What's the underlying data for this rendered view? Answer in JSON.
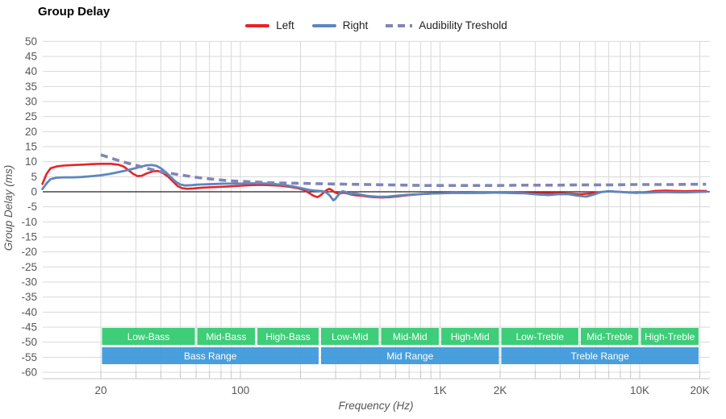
{
  "title": "Group Delay",
  "legend": {
    "items": [
      {
        "label": "Left",
        "color": "#e8232a",
        "style": "solid"
      },
      {
        "label": "Right",
        "color": "#5d87bd",
        "style": "solid"
      },
      {
        "label": "Audibility Treshold",
        "color": "#8185b4",
        "style": "dashed"
      }
    ]
  },
  "chart_data": {
    "type": "line",
    "title": "Group Delay",
    "xlabel": "Frequency (Hz)",
    "ylabel": "Group Delay (ms)",
    "x_axis": {
      "scale": "log",
      "min_hz": 10.2,
      "max_hz": 22400,
      "ticks": [
        {
          "label": "20",
          "value": 20
        },
        {
          "label": "100",
          "value": 100
        },
        {
          "label": "1K",
          "value": 1000
        },
        {
          "label": "2K",
          "value": 2000
        },
        {
          "label": "10K",
          "value": 10000
        },
        {
          "label": "20K",
          "value": 20000
        }
      ]
    },
    "y_axis": {
      "min": -62,
      "max": 50,
      "tick_step": 5,
      "grid": true,
      "tick_labels": [
        "50",
        "45",
        "40",
        "35",
        "30",
        "25",
        "20",
        "15",
        "10",
        "5",
        "0",
        "-5",
        "-10",
        "-15",
        "-20",
        "-25",
        "-30",
        "-35",
        "-40",
        "-45",
        "-50",
        "-55",
        "-60"
      ]
    },
    "series": [
      {
        "name": "Left",
        "color": "#e8232a",
        "width": 2.6,
        "dash": null,
        "points": [
          [
            10.2,
            2.6
          ],
          [
            10.7,
            6.0
          ],
          [
            11.2,
            7.8
          ],
          [
            12,
            8.4
          ],
          [
            13,
            8.7
          ],
          [
            14.5,
            8.9
          ],
          [
            16,
            9.0
          ],
          [
            18,
            9.2
          ],
          [
            20,
            9.3
          ],
          [
            22.5,
            9.3
          ],
          [
            24.5,
            9.0
          ],
          [
            26,
            8.4
          ],
          [
            27.5,
            7.2
          ],
          [
            29,
            6.0
          ],
          [
            30.5,
            5.2
          ],
          [
            32,
            5.3
          ],
          [
            34,
            6.1
          ],
          [
            36.5,
            6.8
          ],
          [
            38.5,
            6.9
          ],
          [
            41,
            6.2
          ],
          [
            43.5,
            5.0
          ],
          [
            46,
            3.4
          ],
          [
            48.5,
            1.9
          ],
          [
            51,
            1.2
          ],
          [
            54,
            1.0
          ],
          [
            58,
            1.1
          ],
          [
            63,
            1.3
          ],
          [
            70,
            1.5
          ],
          [
            78,
            1.6
          ],
          [
            88,
            1.8
          ],
          [
            100,
            2.0
          ],
          [
            112,
            2.2
          ],
          [
            126,
            2.3
          ],
          [
            141,
            2.2
          ],
          [
            158,
            2.0
          ],
          [
            178,
            1.6
          ],
          [
            196,
            1.1
          ],
          [
            210,
            0.5
          ],
          [
            222,
            -0.5
          ],
          [
            232,
            -1.3
          ],
          [
            243,
            -1.8
          ],
          [
            252,
            -1.2
          ],
          [
            262,
            -0.2
          ],
          [
            271,
            0.6
          ],
          [
            279,
            1.0
          ],
          [
            288,
            0.5
          ],
          [
            297,
            -0.2
          ],
          [
            308,
            -0.6
          ],
          [
            318,
            -0.5
          ],
          [
            330,
            -0.3
          ],
          [
            345,
            -0.6
          ],
          [
            362,
            -1.0
          ],
          [
            382,
            -1.2
          ],
          [
            405,
            -1.3
          ],
          [
            432,
            -1.6
          ],
          [
            465,
            -1.8
          ],
          [
            510,
            -1.9
          ],
          [
            560,
            -1.8
          ],
          [
            620,
            -1.5
          ],
          [
            700,
            -1.1
          ],
          [
            800,
            -0.8
          ],
          [
            920,
            -0.6
          ],
          [
            1050,
            -0.4
          ],
          [
            1200,
            -0.3
          ],
          [
            1400,
            -0.4
          ],
          [
            1650,
            -0.4
          ],
          [
            1950,
            -0.3
          ],
          [
            2300,
            -0.3
          ],
          [
            2700,
            -0.4
          ],
          [
            3200,
            -0.5
          ],
          [
            3800,
            -0.4
          ],
          [
            4400,
            -0.6
          ],
          [
            5000,
            -0.8
          ],
          [
            5600,
            -0.6
          ],
          [
            6200,
            -0.2
          ],
          [
            6900,
            0.1
          ],
          [
            7700,
            0.0
          ],
          [
            8600,
            -0.2
          ],
          [
            9600,
            -0.4
          ],
          [
            10800,
            -0.1
          ],
          [
            12000,
            0.3
          ],
          [
            13500,
            0.4
          ],
          [
            15000,
            0.3
          ],
          [
            17000,
            0.2
          ],
          [
            19000,
            0.3
          ],
          [
            21500,
            0.3
          ]
        ]
      },
      {
        "name": "Right",
        "color": "#5d87bd",
        "width": 2.8,
        "dash": null,
        "points": [
          [
            10.2,
            0.9
          ],
          [
            10.7,
            2.8
          ],
          [
            11.2,
            4.2
          ],
          [
            12,
            4.7
          ],
          [
            13,
            4.8
          ],
          [
            14.5,
            4.8
          ],
          [
            16,
            4.9
          ],
          [
            18,
            5.2
          ],
          [
            20,
            5.5
          ],
          [
            22,
            5.9
          ],
          [
            24,
            6.4
          ],
          [
            26,
            6.9
          ],
          [
            28,
            7.4
          ],
          [
            30,
            7.9
          ],
          [
            32,
            8.4
          ],
          [
            34,
            8.8
          ],
          [
            36,
            8.9
          ],
          [
            38,
            8.6
          ],
          [
            40,
            7.8
          ],
          [
            42.5,
            6.4
          ],
          [
            45,
            4.8
          ],
          [
            47.5,
            3.3
          ],
          [
            50,
            2.4
          ],
          [
            53,
            2.1
          ],
          [
            57,
            2.2
          ],
          [
            62,
            2.4
          ],
          [
            68,
            2.5
          ],
          [
            75,
            2.6
          ],
          [
            83,
            2.7
          ],
          [
            92,
            2.7
          ],
          [
            102,
            2.7
          ],
          [
            113,
            2.8
          ],
          [
            125,
            2.8
          ],
          [
            140,
            2.7
          ],
          [
            157,
            2.4
          ],
          [
            175,
            2.0
          ],
          [
            192,
            1.5
          ],
          [
            208,
            1.0
          ],
          [
            222,
            0.6
          ],
          [
            235,
            0.4
          ],
          [
            248,
            0.3
          ],
          [
            258,
            0.2
          ],
          [
            268,
            -0.2
          ],
          [
            278,
            -1.0
          ],
          [
            285,
            -1.9
          ],
          [
            292,
            -2.8
          ],
          [
            299,
            -2.4
          ],
          [
            307,
            -1.4
          ],
          [
            316,
            -0.4
          ],
          [
            325,
            0.2
          ],
          [
            334,
            0.0
          ],
          [
            344,
            -0.4
          ],
          [
            356,
            -0.7
          ],
          [
            370,
            -0.6
          ],
          [
            386,
            -0.7
          ],
          [
            404,
            -1.0
          ],
          [
            426,
            -1.3
          ],
          [
            455,
            -1.5
          ],
          [
            495,
            -1.7
          ],
          [
            545,
            -1.6
          ],
          [
            610,
            -1.3
          ],
          [
            690,
            -1.0
          ],
          [
            780,
            -0.8
          ],
          [
            880,
            -0.6
          ],
          [
            1000,
            -0.5
          ],
          [
            1150,
            -0.4
          ],
          [
            1350,
            -0.4
          ],
          [
            1600,
            -0.3
          ],
          [
            1900,
            -0.3
          ],
          [
            2250,
            -0.4
          ],
          [
            2650,
            -0.5
          ],
          [
            3100,
            -0.9
          ],
          [
            3500,
            -1.1
          ],
          [
            3900,
            -0.8
          ],
          [
            4400,
            -0.8
          ],
          [
            4900,
            -1.3
          ],
          [
            5400,
            -1.6
          ],
          [
            5900,
            -0.9
          ],
          [
            6400,
            -0.1
          ],
          [
            7000,
            0.2
          ],
          [
            7800,
            0.0
          ],
          [
            8700,
            -0.2
          ],
          [
            9700,
            -0.3
          ],
          [
            10800,
            -0.3
          ],
          [
            12000,
            -0.2
          ],
          [
            13500,
            -0.1
          ],
          [
            15000,
            -0.2
          ],
          [
            17000,
            -0.2
          ],
          [
            19000,
            -0.1
          ],
          [
            21500,
            0.0
          ]
        ]
      },
      {
        "name": "Audibility Treshold",
        "color": "#8185b4",
        "width": 3.6,
        "dash": [
          9,
          6
        ],
        "points": [
          [
            20,
            12.3
          ],
          [
            22,
            11.4
          ],
          [
            24.5,
            10.4
          ],
          [
            27,
            9.6
          ],
          [
            30,
            8.8
          ],
          [
            33,
            8.0
          ],
          [
            36.5,
            7.3
          ],
          [
            40,
            6.7
          ],
          [
            44,
            6.2
          ],
          [
            49,
            5.7
          ],
          [
            55,
            5.2
          ],
          [
            62,
            4.7
          ],
          [
            70,
            4.3
          ],
          [
            80,
            3.9
          ],
          [
            92,
            3.6
          ],
          [
            106,
            3.4
          ],
          [
            123,
            3.2
          ],
          [
            143,
            3.0
          ],
          [
            168,
            2.9
          ],
          [
            200,
            2.8
          ],
          [
            240,
            2.7
          ],
          [
            290,
            2.6
          ],
          [
            355,
            2.5
          ],
          [
            440,
            2.4
          ],
          [
            545,
            2.3
          ],
          [
            680,
            2.2
          ],
          [
            850,
            2.1
          ],
          [
            1050,
            2.1
          ],
          [
            1300,
            2.1
          ],
          [
            1600,
            2.1
          ],
          [
            2000,
            2.1
          ],
          [
            2500,
            2.2
          ],
          [
            3100,
            2.2
          ],
          [
            3900,
            2.2
          ],
          [
            4900,
            2.3
          ],
          [
            6100,
            2.3
          ],
          [
            7600,
            2.3
          ],
          [
            9500,
            2.4
          ],
          [
            11800,
            2.4
          ],
          [
            14700,
            2.4
          ],
          [
            18300,
            2.5
          ],
          [
            21500,
            2.5
          ]
        ]
      }
    ],
    "bands": {
      "tier1_color": "#2fc96f",
      "tier2_color": "#3b98da",
      "tier1": [
        {
          "label": "Low-Bass",
          "from": 20,
          "to": 60
        },
        {
          "label": "Mid-Bass",
          "from": 60,
          "to": 120
        },
        {
          "label": "High-Bass",
          "from": 120,
          "to": 250
        },
        {
          "label": "Low-Mid",
          "from": 250,
          "to": 500
        },
        {
          "label": "Mid-Mid",
          "from": 500,
          "to": 1000
        },
        {
          "label": "High-Mid",
          "from": 1000,
          "to": 2000
        },
        {
          "label": "Low-Treble",
          "from": 2000,
          "to": 5000
        },
        {
          "label": "Mid-Treble",
          "from": 5000,
          "to": 10000
        },
        {
          "label": "High-Treble",
          "from": 10000,
          "to": 20000
        }
      ],
      "tier2": [
        {
          "label": "Bass Range",
          "from": 20,
          "to": 250
        },
        {
          "label": "Mid Range",
          "from": 250,
          "to": 2000
        },
        {
          "label": "Treble Range",
          "from": 2000,
          "to": 20000
        }
      ]
    },
    "colors": {
      "grid": "#d8d8d8",
      "tick": "#c6c6c6",
      "zero_line": "#222222",
      "axis_text": "#58585a"
    }
  }
}
